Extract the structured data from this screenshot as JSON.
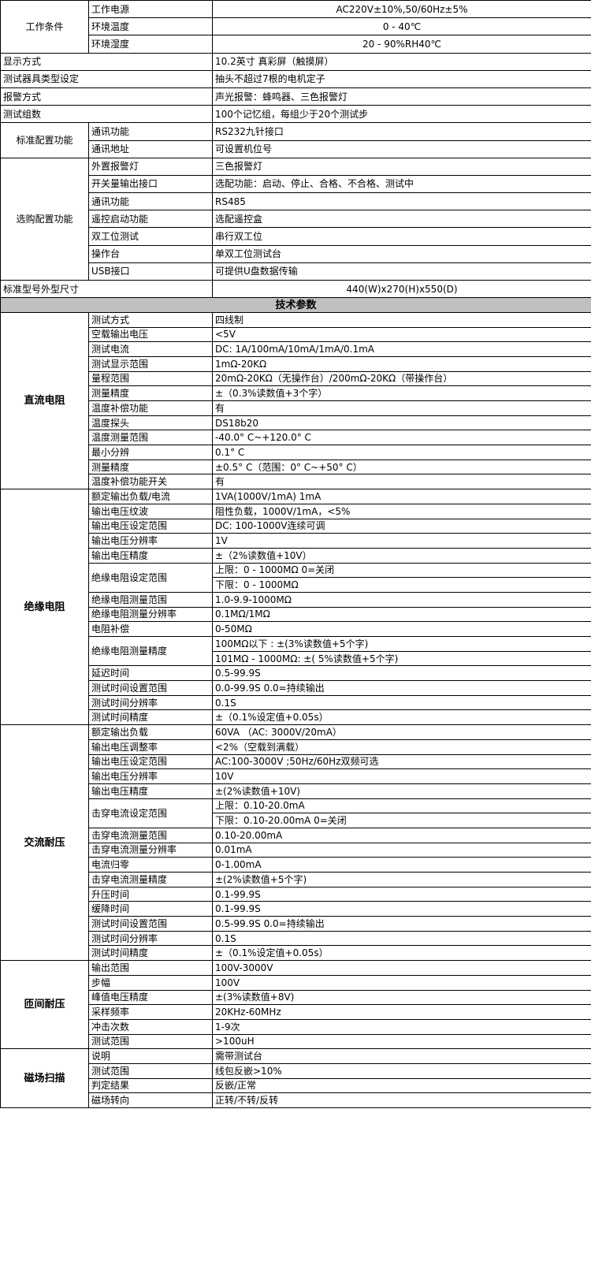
{
  "general": [
    {
      "group": "工作条件",
      "center": true,
      "items": [
        {
          "label": "工作电源",
          "value": "AC220V±10%,50/60Hz±5%"
        },
        {
          "label": "环境温度",
          "value": "0 - 40℃"
        },
        {
          "label": "环境湿度",
          "value": "20 - 90%RH40℃"
        }
      ]
    },
    {
      "label": "显示方式",
      "value": "10.2英寸 真彩屏（触摸屏）"
    },
    {
      "label": "测试器具类型设定",
      "value": "抽头不超过7根的电机定子"
    },
    {
      "label": "报警方式",
      "value": "声光报警：蜂鸣器、三色报警灯"
    },
    {
      "label": "测试组数",
      "value": "100个记忆组，每组少于20个测试步"
    },
    {
      "group": "标准配置功能",
      "items": [
        {
          "label": "通讯功能",
          "value": "RS232九针接口"
        },
        {
          "label": "通讯地址",
          "value": "可设置机位号"
        }
      ]
    },
    {
      "group": "选购配置功能",
      "items": [
        {
          "label": "外置报警灯",
          "value": "三色报警灯"
        },
        {
          "label": "开关量输出接口",
          "value": "选配功能：启动、停止、合格、不合格、测试中"
        },
        {
          "label": "通讯功能",
          "value": "RS485"
        },
        {
          "label": "遥控启动功能",
          "value": "选配遥控盒"
        },
        {
          "label": "双工位测试",
          "value": "串行双工位"
        },
        {
          "label": "操作台",
          "value": "单双工位测试台"
        },
        {
          "label": "USB接口",
          "value": "可提供U盘数据传输"
        }
      ]
    },
    {
      "label": "标准型号外型尺寸",
      "value": "440(W)x270(H)x550(D)",
      "center": true
    }
  ],
  "tech_header": "技术参数",
  "tech": [
    {
      "category": "直流电阻",
      "items": [
        {
          "label": "测试方式",
          "values": [
            "四线制"
          ]
        },
        {
          "label": "空载输出电压",
          "values": [
            "<5V"
          ]
        },
        {
          "label": "测试电流",
          "values": [
            "DC: 1A/100mA/10mA/1mA/0.1mA"
          ]
        },
        {
          "label": "测试显示范围",
          "values": [
            "1mΩ-20KΩ"
          ]
        },
        {
          "label": "量程范围",
          "values": [
            "20mΩ-20KΩ（无操作台）/200mΩ-20KΩ（带操作台）"
          ]
        },
        {
          "label": "测量精度",
          "values": [
            "±（0.3%读数值+3个字）"
          ]
        },
        {
          "label": "温度补偿功能",
          "values": [
            "有"
          ]
        },
        {
          "label": "温度探头",
          "values": [
            "DS18b20"
          ]
        },
        {
          "label": "温度测量范围",
          "values": [
            "-40.0° C~+120.0° C"
          ]
        },
        {
          "label": "最小分辨",
          "values": [
            "0.1° C"
          ]
        },
        {
          "label": "测量精度",
          "values": [
            "±0.5° C（范围：0° C~+50° C）"
          ]
        },
        {
          "label": "温度补偿功能开关",
          "values": [
            "有"
          ]
        }
      ]
    },
    {
      "category": "绝缘电阻",
      "items": [
        {
          "label": "额定输出负载/电流",
          "values": [
            "1VA(1000V/1mA)   1mA"
          ]
        },
        {
          "label": "输出电压纹波",
          "values": [
            "阻性负载，1000V/1mA，<5%"
          ]
        },
        {
          "label": "输出电压设定范围",
          "values": [
            "DC: 100-1000V连续可调"
          ]
        },
        {
          "label": "输出电压分辨率",
          "values": [
            "1V"
          ]
        },
        {
          "label": "输出电压精度",
          "values": [
            "±（2%读数值+10V）"
          ]
        },
        {
          "label": "绝缘电阻设定范围",
          "values": [
            "上限：0 - 1000MΩ      0=关闭",
            "下限：0 - 1000MΩ"
          ]
        },
        {
          "label": "绝缘电阻测量范围",
          "values": [
            "1.0-9.9-1000MΩ"
          ]
        },
        {
          "label": "绝缘电阻测量分辨率",
          "values": [
            "0.1MΩ/1MΩ"
          ]
        },
        {
          "label": "电阻补偿",
          "values": [
            "0-50MΩ"
          ]
        },
        {
          "label": "绝缘电阻测量精度",
          "values": [
            "100MΩ以下 :       ±(3%读数值+5个字)",
            "101MΩ - 1000MΩ:    ±(  5%读数值+5个字)"
          ]
        },
        {
          "label": "延迟时间",
          "values": [
            "0.5-99.9S"
          ]
        },
        {
          "label": "测试时间设置范围",
          "values": [
            "0.0-99.9S       0.0=持续输出"
          ]
        },
        {
          "label": "测试时间分辨率",
          "values": [
            "0.1S"
          ]
        },
        {
          "label": "测试时间精度",
          "values": [
            "±（0.1%设定值+0.05s）"
          ]
        }
      ]
    },
    {
      "category": "交流耐压",
      "items": [
        {
          "label": "额定输出负载",
          "values": [
            "60VA （AC: 3000V/20mA）"
          ]
        },
        {
          "label": "输出电压调整率",
          "values": [
            "<2%（空载到满载）"
          ]
        },
        {
          "label": "输出电压设定范围",
          "values": [
            "AC:100-3000V ;50Hz/60Hz双频可选"
          ]
        },
        {
          "label": "输出电压分辨率",
          "values": [
            "10V"
          ]
        },
        {
          "label": "输出电压精度",
          "values": [
            "±(2%读数值+10V)"
          ]
        },
        {
          "label": "击穿电流设定范围",
          "values": [
            "上限：0.10-20.0mA",
            "下限：0.10-20.00mA    0=关闭"
          ]
        },
        {
          "label": "击穿电流测量范围",
          "values": [
            "0.10-20.00mA"
          ]
        },
        {
          "label": "击穿电流测量分辨率",
          "values": [
            "0.01mA"
          ]
        },
        {
          "label": "电流归零",
          "values": [
            "0-1.00mA"
          ]
        },
        {
          "label": "击穿电流测量精度",
          "values": [
            "±(2%读数值+5个字)"
          ]
        },
        {
          "label": "升压时间",
          "values": [
            "0.1-99.9S"
          ]
        },
        {
          "label": "缓降时间",
          "values": [
            "0.1-99.9S"
          ]
        },
        {
          "label": "测试时间设置范围",
          "values": [
            "0.5-99.9S       0.0=持续输出"
          ]
        },
        {
          "label": "测试时间分辨率",
          "values": [
            "0.1S"
          ]
        },
        {
          "label": "测试时间精度",
          "values": [
            "±（0.1%设定值+0.05s）"
          ]
        }
      ]
    },
    {
      "category": "匝间耐压",
      "items": [
        {
          "label": "输出范围",
          "values": [
            "100V-3000V"
          ]
        },
        {
          "label": "步幅",
          "values": [
            "100V"
          ]
        },
        {
          "label": "峰值电压精度",
          "values": [
            "±(3%读数值+8V)"
          ]
        },
        {
          "label": "采样频率",
          "values": [
            "20KHz-60MHz"
          ]
        },
        {
          "label": "冲击次数",
          "values": [
            "1-9次"
          ]
        },
        {
          "label": "测试范围",
          "values": [
            ">100uH"
          ]
        }
      ]
    },
    {
      "category": "磁场扫描",
      "items": [
        {
          "label": "说明",
          "values": [
            "需带测试台"
          ]
        },
        {
          "label": "测试范围",
          "values": [
            "线包反嵌>10%"
          ]
        },
        {
          "label": "判定结果",
          "values": [
            "反嵌/正常"
          ]
        },
        {
          "label": "磁场转向",
          "values": [
            "正转/不转/反转"
          ]
        }
      ]
    }
  ]
}
